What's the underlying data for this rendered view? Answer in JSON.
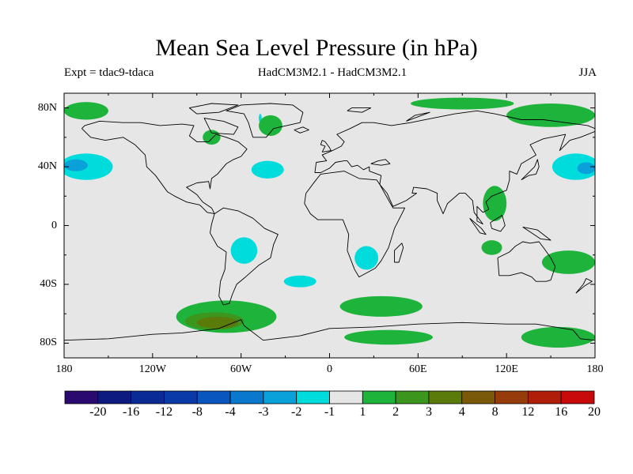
{
  "title": "Mean Sea Level Pressure (in hPa)",
  "experiment": "Expt = tdac9-tdaca",
  "models": "HadCM3M2.1 - HadCM3M2.1",
  "season": "JJA",
  "lat_labels": [
    "80N",
    "40N",
    "0",
    "40S",
    "80S"
  ],
  "lat_values": [
    80,
    40,
    0,
    -40,
    -80
  ],
  "lon_labels": [
    "180",
    "120W",
    "60W",
    "0",
    "60E",
    "120E",
    "180"
  ],
  "lon_values": [
    -180,
    -120,
    -60,
    0,
    60,
    120,
    180
  ],
  "colorbar": {
    "labels": [
      "-20",
      "-16",
      "-12",
      "-8",
      "-4",
      "-3",
      "-2",
      "-1",
      "1",
      "2",
      "3",
      "4",
      "8",
      "12",
      "16",
      "20"
    ],
    "colors": [
      "#2a0a6e",
      "#0d1a80",
      "#0a2a96",
      "#0a3aa8",
      "#0a56bf",
      "#0a78cc",
      "#0aa0da",
      "#00dcdc",
      "#e6e6e6",
      "#1eb43c",
      "#3c961e",
      "#5a7a0a",
      "#7a5a0a",
      "#963c0a",
      "#b01e0a",
      "#c80a0a"
    ]
  },
  "anomaly_regions": [
    {
      "name": "north-pacific-east-negative",
      "level": -2,
      "lon": -165,
      "lat": 40,
      "rlon": 18,
      "rlat": 9
    },
    {
      "name": "north-pacific-east-core",
      "level": -3,
      "lon": -172,
      "lat": 41,
      "rlon": 8,
      "rlat": 4
    },
    {
      "name": "north-atlantic-negative",
      "level": -2,
      "lon": -42,
      "lat": 38,
      "rlon": 11,
      "rlat": 6
    },
    {
      "name": "south-america-negative",
      "level": -2,
      "lon": -58,
      "lat": -17,
      "rlon": 9,
      "rlat": 9
    },
    {
      "name": "south-atlantic-negative",
      "level": -2,
      "lon": -20,
      "lat": -38,
      "rlon": 11,
      "rlat": 4
    },
    {
      "name": "southern-africa-negative",
      "level": -2,
      "lon": 25,
      "lat": -22,
      "rlon": 8,
      "rlat": 8
    },
    {
      "name": "north-pacific-west-negative",
      "level": -2,
      "lon": 167,
      "lat": 40,
      "rlon": 16,
      "rlat": 9
    },
    {
      "name": "north-pacific-west-core",
      "level": -3,
      "lon": 174,
      "lat": 39,
      "rlon": 6,
      "rlat": 4
    },
    {
      "name": "greenland-negative",
      "level": -2,
      "lon": -47,
      "lat": 73,
      "rlon": 1,
      "rlat": 3
    },
    {
      "name": "southern-ocean-positive",
      "level": 2,
      "lon": -70,
      "lat": -62,
      "rlon": 34,
      "rlat": 11
    },
    {
      "name": "southern-ocean-mid",
      "level": 3,
      "lon": -78,
      "lat": -65,
      "rlon": 20,
      "rlat": 6
    },
    {
      "name": "southern-ocean-core",
      "level": 4,
      "lon": -76,
      "lat": -66,
      "rlon": 14,
      "rlat": 4
    },
    {
      "name": "south-atlantic-indian-positive",
      "level": 2,
      "lon": 35,
      "lat": -55,
      "rlon": 28,
      "rlat": 7
    },
    {
      "name": "antarctic-coast-positive",
      "level": 2,
      "lon": 40,
      "lat": -76,
      "rlon": 30,
      "rlat": 5
    },
    {
      "name": "southeast-pacific-positive",
      "level": 2,
      "lon": 155,
      "lat": -76,
      "rlon": 25,
      "rlat": 7
    },
    {
      "name": "east-asia-positive",
      "level": 2,
      "lon": 112,
      "lat": 15,
      "rlon": 8,
      "rlat": 12
    },
    {
      "name": "australia-west-positive",
      "level": 2,
      "lon": 110,
      "lat": -15,
      "rlon": 7,
      "rlat": 5
    },
    {
      "name": "australia-east-positive",
      "level": 2,
      "lon": 162,
      "lat": -25,
      "rlon": 18,
      "rlat": 8
    },
    {
      "name": "arctic-northwest-positive",
      "level": 2,
      "lon": -165,
      "lat": 78,
      "rlon": 15,
      "rlat": 6
    },
    {
      "name": "arctic-northeast-positive",
      "level": 2,
      "lon": 150,
      "lat": 75,
      "rlon": 30,
      "rlat": 8
    },
    {
      "name": "arctic-central-positive",
      "level": 2,
      "lon": 90,
      "lat": 83,
      "rlon": 35,
      "rlat": 4
    },
    {
      "name": "hudson-positive",
      "level": 2,
      "lon": -80,
      "lat": 60,
      "rlon": 6,
      "rlat": 5
    },
    {
      "name": "greenland-positive",
      "level": 2,
      "lon": -40,
      "lat": 68,
      "rlon": 8,
      "rlat": 7
    }
  ]
}
